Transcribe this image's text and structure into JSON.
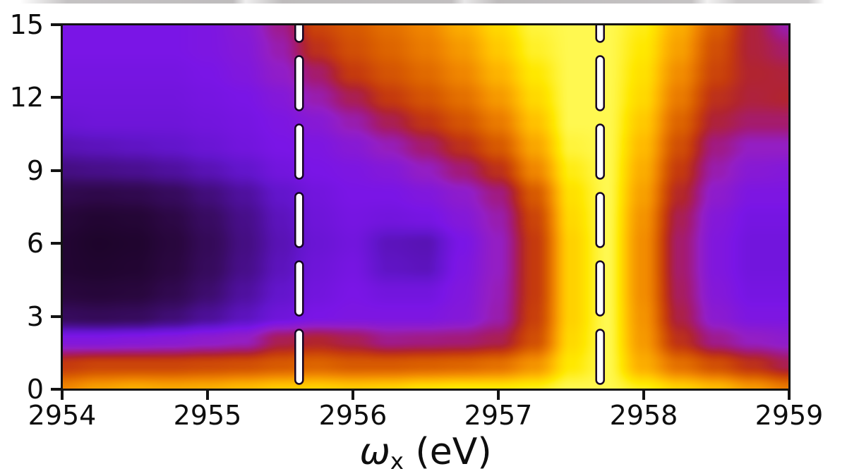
{
  "figure": {
    "xlabel": {
      "symbol": "ω",
      "subscript": "x",
      "unit": " (eV)"
    },
    "x_tick_labels": [
      "2954",
      "2955",
      "2956",
      "2957",
      "2958",
      "2959"
    ],
    "y_tick_labels": [
      "15",
      "12",
      "9",
      "6",
      "3",
      "0"
    ],
    "axis_color": "#131313",
    "background_color": "#ffffff"
  },
  "chart_data": {
    "type": "heatmap",
    "title": "",
    "xlabel": "ω_x (eV)",
    "ylabel": "",
    "x_range": [
      2954,
      2959
    ],
    "y_range": [
      0,
      15
    ],
    "x_ticks": [
      2954,
      2955,
      2956,
      2957,
      2958,
      2959
    ],
    "y_ticks": [
      0,
      3,
      6,
      9,
      12,
      15
    ],
    "grid_lines": "off",
    "legend": "none",
    "colorbar": "none",
    "intensity_scale": "normalized 0 (dark) to 1 (bright yellow), estimated from colors",
    "colormap_stops": [
      [
        0.0,
        "#12021a"
      ],
      [
        0.07,
        "#1c0428"
      ],
      [
        0.14,
        "#2a0740"
      ],
      [
        0.22,
        "#3a0c66"
      ],
      [
        0.3,
        "#4f109e"
      ],
      [
        0.36,
        "#6315cc"
      ],
      [
        0.42,
        "#7a15e6"
      ],
      [
        0.5,
        "#941ec4"
      ],
      [
        0.57,
        "#a31a78"
      ],
      [
        0.63,
        "#b12430"
      ],
      [
        0.68,
        "#c53a0e"
      ],
      [
        0.75,
        "#da5f00"
      ],
      [
        0.82,
        "#f08600"
      ],
      [
        0.9,
        "#ffba00"
      ],
      [
        0.96,
        "#ffe800"
      ],
      [
        1.0,
        "#fff850"
      ]
    ],
    "grid_x": [
      2954,
      2954.25,
      2954.5,
      2954.75,
      2955,
      2955.25,
      2955.5,
      2955.75,
      2956,
      2956.25,
      2956.5,
      2956.75,
      2957,
      2957.25,
      2957.5,
      2957.75,
      2958,
      2958.25,
      2958.5,
      2958.75,
      2959
    ],
    "grid_y_top_to_bottom": [
      15,
      14,
      13,
      12,
      11,
      10,
      9,
      8,
      7,
      6,
      5,
      4,
      3,
      2,
      1,
      0
    ],
    "values_normalized": [
      [
        0.42,
        0.42,
        0.42,
        0.42,
        0.43,
        0.46,
        0.55,
        0.7,
        0.74,
        0.78,
        0.82,
        0.88,
        0.94,
        0.99,
        1.0,
        1.0,
        0.97,
        0.88,
        0.75,
        0.62,
        0.52
      ],
      [
        0.42,
        0.42,
        0.42,
        0.42,
        0.43,
        0.45,
        0.52,
        0.66,
        0.72,
        0.76,
        0.8,
        0.85,
        0.92,
        0.98,
        1.0,
        1.0,
        0.96,
        0.86,
        0.72,
        0.62,
        0.58
      ],
      [
        0.41,
        0.41,
        0.41,
        0.41,
        0.42,
        0.44,
        0.49,
        0.58,
        0.68,
        0.73,
        0.77,
        0.82,
        0.89,
        0.96,
        1.0,
        1.0,
        0.95,
        0.83,
        0.7,
        0.63,
        0.62
      ],
      [
        0.4,
        0.4,
        0.4,
        0.4,
        0.41,
        0.42,
        0.45,
        0.52,
        0.6,
        0.68,
        0.73,
        0.78,
        0.85,
        0.94,
        1.0,
        1.0,
        0.94,
        0.8,
        0.66,
        0.62,
        0.63
      ],
      [
        0.38,
        0.39,
        0.39,
        0.39,
        0.4,
        0.41,
        0.43,
        0.46,
        0.52,
        0.6,
        0.67,
        0.73,
        0.8,
        0.91,
        1.0,
        1.0,
        0.92,
        0.76,
        0.62,
        0.58,
        0.58
      ],
      [
        0.33,
        0.34,
        0.35,
        0.36,
        0.38,
        0.4,
        0.42,
        0.43,
        0.46,
        0.51,
        0.58,
        0.66,
        0.74,
        0.87,
        0.99,
        1.0,
        0.9,
        0.72,
        0.56,
        0.5,
        0.5
      ],
      [
        0.26,
        0.27,
        0.28,
        0.3,
        0.33,
        0.36,
        0.4,
        0.42,
        0.43,
        0.45,
        0.5,
        0.57,
        0.66,
        0.82,
        0.97,
        1.0,
        0.88,
        0.68,
        0.52,
        0.46,
        0.45
      ],
      [
        0.17,
        0.16,
        0.17,
        0.2,
        0.25,
        0.3,
        0.36,
        0.4,
        0.42,
        0.42,
        0.44,
        0.48,
        0.56,
        0.74,
        0.95,
        1.0,
        0.86,
        0.64,
        0.48,
        0.43,
        0.43
      ],
      [
        0.12,
        0.1,
        0.11,
        0.15,
        0.21,
        0.27,
        0.34,
        0.39,
        0.41,
        0.4,
        0.41,
        0.45,
        0.52,
        0.7,
        0.94,
        1.0,
        0.84,
        0.6,
        0.45,
        0.41,
        0.41
      ],
      [
        0.1,
        0.08,
        0.09,
        0.13,
        0.19,
        0.26,
        0.33,
        0.38,
        0.4,
        0.34,
        0.33,
        0.42,
        0.5,
        0.68,
        0.93,
        1.0,
        0.83,
        0.58,
        0.44,
        0.4,
        0.4
      ],
      [
        0.1,
        0.09,
        0.1,
        0.14,
        0.2,
        0.27,
        0.34,
        0.39,
        0.41,
        0.35,
        0.34,
        0.43,
        0.5,
        0.68,
        0.93,
        1.0,
        0.83,
        0.58,
        0.44,
        0.4,
        0.4
      ],
      [
        0.13,
        0.12,
        0.13,
        0.17,
        0.23,
        0.3,
        0.36,
        0.4,
        0.42,
        0.4,
        0.4,
        0.44,
        0.51,
        0.68,
        0.93,
        1.0,
        0.83,
        0.59,
        0.45,
        0.41,
        0.41
      ],
      [
        0.2,
        0.19,
        0.2,
        0.24,
        0.29,
        0.34,
        0.39,
        0.42,
        0.43,
        0.43,
        0.43,
        0.45,
        0.52,
        0.69,
        0.93,
        1.0,
        0.84,
        0.61,
        0.47,
        0.43,
        0.43
      ],
      [
        0.44,
        0.44,
        0.45,
        0.46,
        0.48,
        0.5,
        0.6,
        0.63,
        0.6,
        0.55,
        0.56,
        0.57,
        0.6,
        0.72,
        0.94,
        1.0,
        0.85,
        0.66,
        0.55,
        0.5,
        0.48
      ],
      [
        0.68,
        0.7,
        0.7,
        0.7,
        0.71,
        0.72,
        0.74,
        0.76,
        0.74,
        0.74,
        0.75,
        0.76,
        0.78,
        0.84,
        0.96,
        1.0,
        0.88,
        0.78,
        0.72,
        0.66,
        0.6
      ],
      [
        0.82,
        0.86,
        0.88,
        0.87,
        0.88,
        0.9,
        0.92,
        0.93,
        0.92,
        0.93,
        0.95,
        0.96,
        0.96,
        0.97,
        1.0,
        1.0,
        0.97,
        0.93,
        0.9,
        0.85,
        0.8
      ]
    ],
    "vlines": {
      "x_values": [
        2955.63,
        2957.7
      ],
      "color": "#ffffff",
      "outline_color": "#150322",
      "style": "dashed"
    }
  }
}
